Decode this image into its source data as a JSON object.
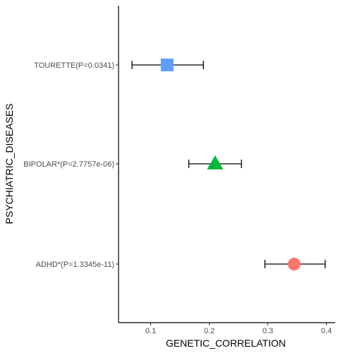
{
  "chart_data": {
    "type": "scatter",
    "title": "",
    "xlabel": "GENETIC_CORRELATION",
    "ylabel": "PSYCHIATRIC_DISEASES",
    "xlim": [
      0.045,
      0.415
    ],
    "x_ticks": [
      0.1,
      0.2,
      0.3,
      0.4
    ],
    "x_tick_labels": [
      "0.1",
      "0.2",
      "0.3",
      "0.4"
    ],
    "grid": false,
    "points": [
      {
        "category": "TOURETTE(P=0.0341)",
        "x": 0.128,
        "ci": [
          0.068,
          0.19
        ],
        "shape": "square",
        "color": "#619CFF"
      },
      {
        "category": "BIPOLAR*(P=2.7757e-06)",
        "x": 0.21,
        "ci": [
          0.165,
          0.255
        ],
        "shape": "triangle",
        "color": "#00BA38"
      },
      {
        "category": "ADHD*(P=1.3345e-11)",
        "x": 0.345,
        "ci": [
          0.295,
          0.398
        ],
        "shape": "circle",
        "color": "#F8766D"
      }
    ]
  }
}
